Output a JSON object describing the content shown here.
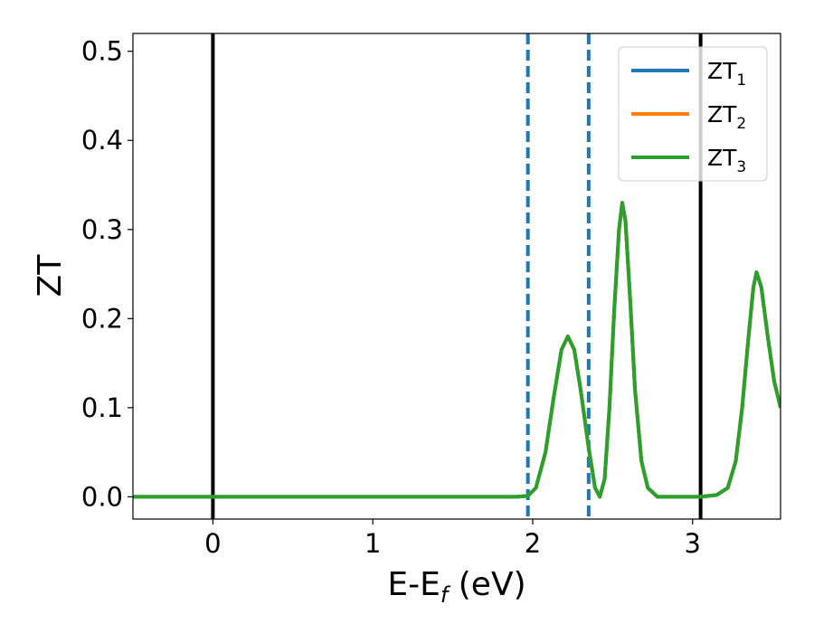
{
  "chart_data": {
    "type": "line",
    "xlabel_main": "E-E",
    "xlabel_sub": "f",
    "xlabel_unit": " (eV)",
    "ylabel": "ZT",
    "xlim": [
      -0.5,
      3.55
    ],
    "ylim": [
      -0.025,
      0.52
    ],
    "xticks": [
      0,
      1,
      2,
      3
    ],
    "yticks": [
      0.0,
      0.1,
      0.2,
      0.3,
      0.4,
      0.5
    ],
    "xtick_labels": [
      "0",
      "1",
      "2",
      "3"
    ],
    "ytick_labels": [
      "0.0",
      "0.1",
      "0.2",
      "0.3",
      "0.4",
      "0.5"
    ],
    "grid": false,
    "legend_position": "top-right",
    "series": [
      {
        "name_main": "ZT",
        "name_sub": "1",
        "color": "#1f77b4",
        "x": [
          -0.5,
          0.0,
          0.5,
          1.0,
          1.5,
          1.9,
          1.97,
          2.02,
          2.08,
          2.13,
          2.18,
          2.22,
          2.26,
          2.3,
          2.35,
          2.39,
          2.42,
          2.45,
          2.48,
          2.51,
          2.54,
          2.56,
          2.58,
          2.61,
          2.64,
          2.68,
          2.72,
          2.78,
          2.9,
          3.05,
          3.15,
          3.22,
          3.27,
          3.31,
          3.35,
          3.38,
          3.4,
          3.43,
          3.47,
          3.51,
          3.55
        ],
        "y": [
          0.0,
          0.0,
          0.0,
          0.0,
          0.0,
          0.0,
          0.001,
          0.01,
          0.05,
          0.11,
          0.165,
          0.18,
          0.165,
          0.12,
          0.055,
          0.01,
          0.0,
          0.02,
          0.1,
          0.21,
          0.3,
          0.33,
          0.31,
          0.22,
          0.12,
          0.04,
          0.01,
          0.0,
          0.0,
          0.0,
          0.002,
          0.01,
          0.04,
          0.1,
          0.18,
          0.235,
          0.252,
          0.235,
          0.18,
          0.13,
          0.1
        ]
      },
      {
        "name_main": "ZT",
        "name_sub": "2",
        "color": "#ff7f0e",
        "x": [
          -0.5,
          0.0,
          0.5,
          1.0,
          1.5,
          1.9,
          1.97,
          2.02,
          2.08,
          2.13,
          2.18,
          2.22,
          2.26,
          2.3,
          2.35,
          2.39,
          2.42,
          2.45,
          2.48,
          2.51,
          2.54,
          2.56,
          2.58,
          2.61,
          2.64,
          2.68,
          2.72,
          2.78,
          2.9,
          3.05,
          3.15,
          3.22,
          3.27,
          3.31,
          3.35,
          3.38,
          3.4,
          3.43,
          3.47,
          3.51,
          3.55
        ],
        "y": [
          0.0,
          0.0,
          0.0,
          0.0,
          0.0,
          0.0,
          0.001,
          0.01,
          0.05,
          0.11,
          0.165,
          0.18,
          0.165,
          0.12,
          0.055,
          0.01,
          0.0,
          0.02,
          0.1,
          0.21,
          0.3,
          0.33,
          0.31,
          0.22,
          0.12,
          0.04,
          0.01,
          0.0,
          0.0,
          0.0,
          0.002,
          0.01,
          0.04,
          0.1,
          0.18,
          0.235,
          0.252,
          0.235,
          0.18,
          0.13,
          0.1
        ]
      },
      {
        "name_main": "ZT",
        "name_sub": "3",
        "color": "#2ca02c",
        "x": [
          -0.5,
          0.0,
          0.5,
          1.0,
          1.5,
          1.9,
          1.97,
          2.02,
          2.08,
          2.13,
          2.18,
          2.22,
          2.26,
          2.3,
          2.35,
          2.39,
          2.42,
          2.45,
          2.48,
          2.51,
          2.54,
          2.56,
          2.58,
          2.61,
          2.64,
          2.68,
          2.72,
          2.78,
          2.9,
          3.05,
          3.15,
          3.22,
          3.27,
          3.31,
          3.35,
          3.38,
          3.4,
          3.43,
          3.47,
          3.51,
          3.55
        ],
        "y": [
          0.0,
          0.0,
          0.0,
          0.0,
          0.0,
          0.0,
          0.001,
          0.01,
          0.05,
          0.11,
          0.165,
          0.18,
          0.165,
          0.12,
          0.055,
          0.01,
          0.0,
          0.02,
          0.1,
          0.21,
          0.3,
          0.33,
          0.31,
          0.22,
          0.12,
          0.04,
          0.01,
          0.0,
          0.0,
          0.0,
          0.002,
          0.01,
          0.04,
          0.1,
          0.18,
          0.235,
          0.252,
          0.235,
          0.18,
          0.13,
          0.1
        ]
      }
    ],
    "vertical_lines": [
      {
        "x": 0.0,
        "style": "solid",
        "color": "#000000"
      },
      {
        "x": 3.05,
        "style": "solid",
        "color": "#000000"
      },
      {
        "x": 1.97,
        "style": "dashed",
        "color": "#1f77b4"
      },
      {
        "x": 2.35,
        "style": "dashed",
        "color": "#1f77b4"
      }
    ]
  }
}
